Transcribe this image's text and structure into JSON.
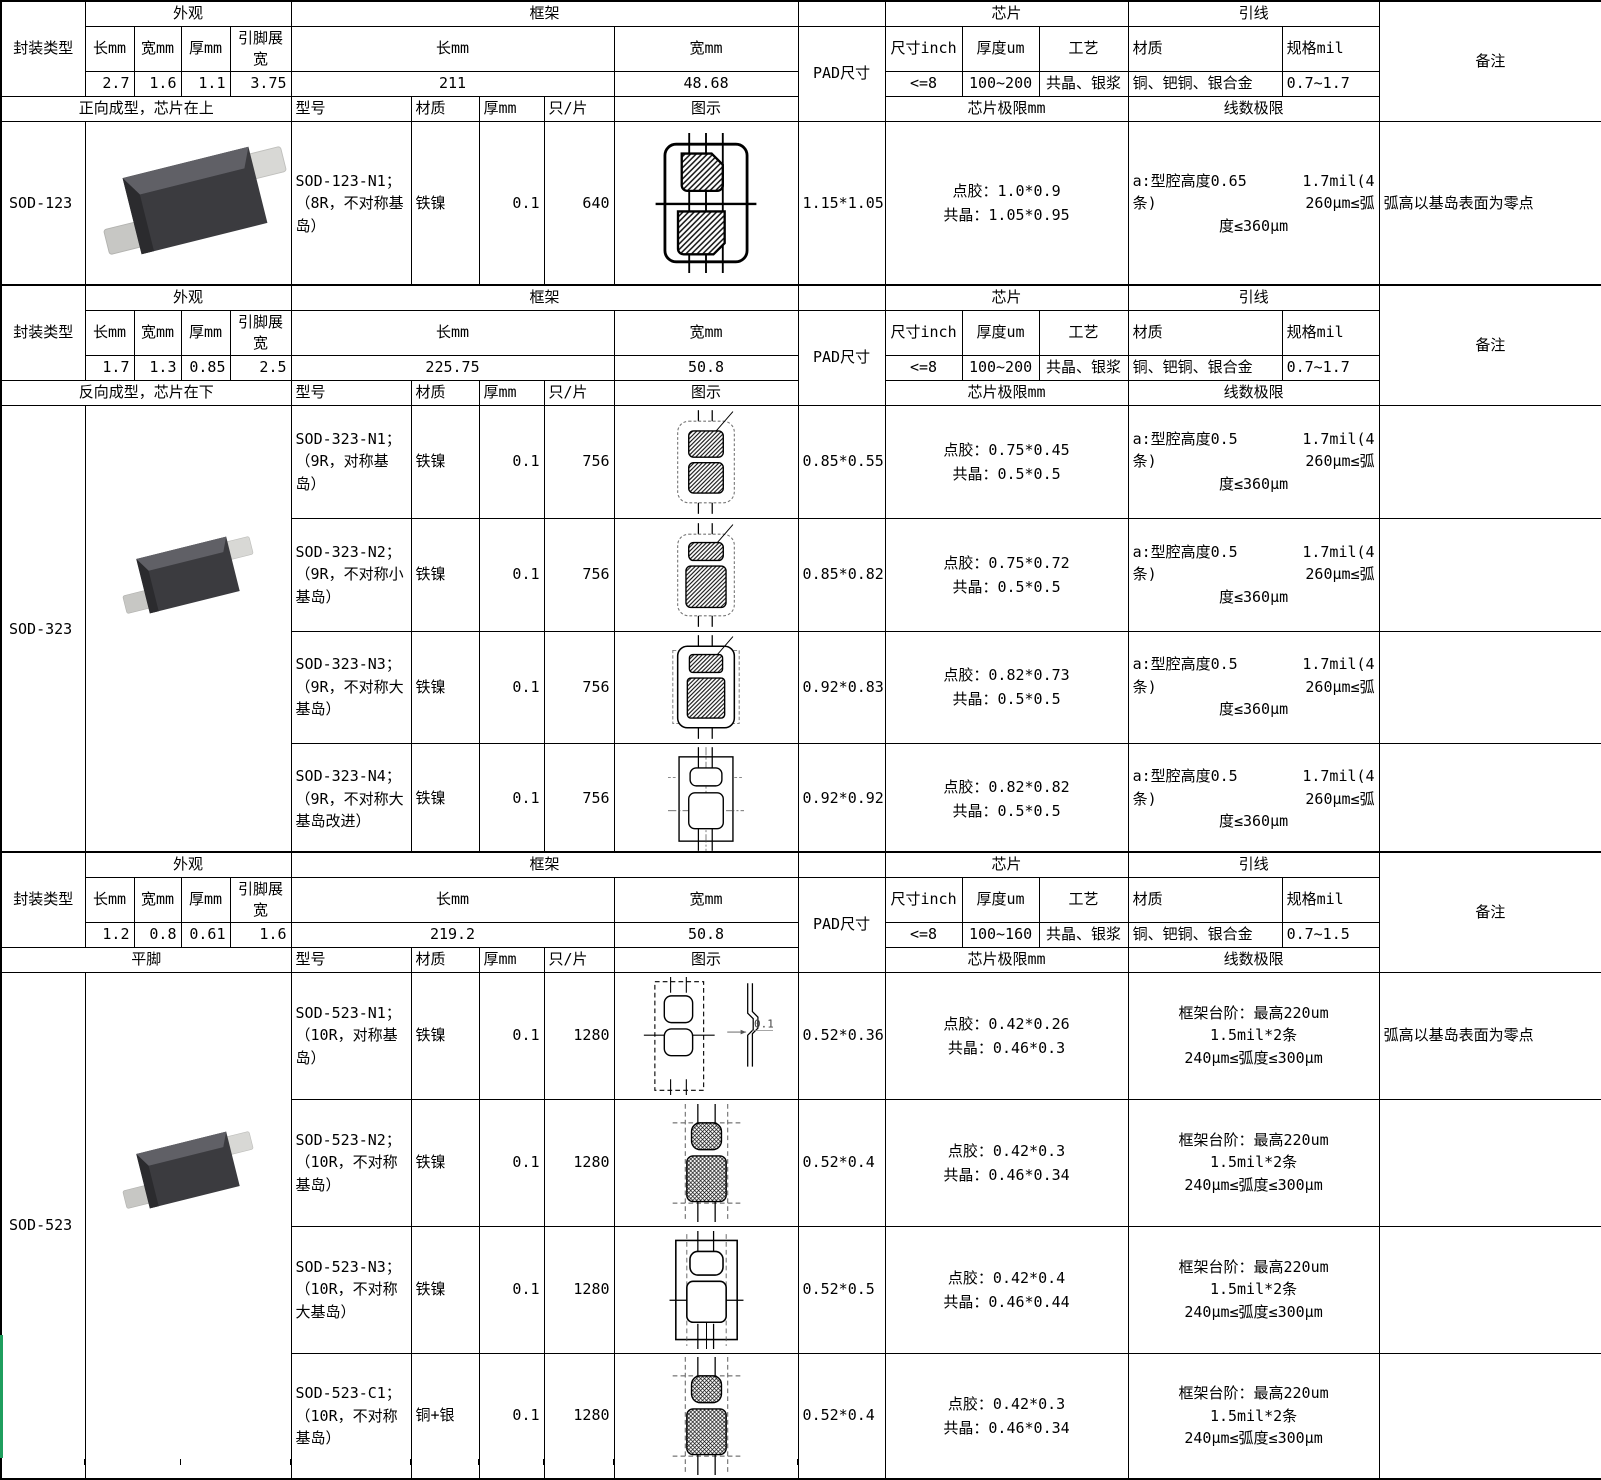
{
  "labels": {
    "package_type": "封装类型",
    "appearance": "外观",
    "frame": "框架",
    "chip": "芯片",
    "wire": "引线",
    "remark": "备注",
    "length_mm": "长mm",
    "width_mm": "宽mm",
    "thickness_mm": "厚mm",
    "lead_span": "引脚展宽",
    "model": "型号",
    "material": "材质",
    "pcs": "只/片",
    "diagram": "图示",
    "pad_size": "PAD尺寸",
    "size_inch": "尺寸inch",
    "thickness_um": "厚度um",
    "process": "工艺",
    "spec_mil": "规格mil",
    "chip_limit": "芯片极限mm",
    "wire_limit": "线数极限"
  },
  "colors": {
    "border": "#000000",
    "selection_green": "#1f9e5e",
    "background": "#ffffff"
  },
  "sections": [
    {
      "package": "SOD-123",
      "appearance": {
        "length": "2.7",
        "width": "1.6",
        "thickness": "1.1",
        "lead_span": "3.75"
      },
      "frame": {
        "length": "211",
        "width": "48.68"
      },
      "molding": "正向成型，芯片在上",
      "chip": {
        "size_inch": "<=8",
        "thickness_um": "100~200",
        "process": "共晶、银浆"
      },
      "wire": {
        "material": "铜、钯铜、银合金",
        "spec_mil": "0.7~1.7"
      },
      "rows": [
        {
          "model": "SOD-123-N1；（8R，不对称基岛）",
          "material": "铁镍",
          "thickness": "0.1",
          "pcs": "640",
          "diagram": "sod123",
          "pad": "1.15*1.05",
          "chip_limit": [
            "点胶：1.0*0.9",
            "共晶：1.05*0.95"
          ],
          "wire_limit_lines": [
            {
              "l": "a:型腔高度0.65",
              "r": "1.7mil(4"
            },
            {
              "l": "条)",
              "r": "260μm≤弧"
            },
            {
              "c": "度≤360μm"
            }
          ],
          "remark": "弧高以基岛表面为零点"
        }
      ]
    },
    {
      "package": "SOD-323",
      "appearance": {
        "length": "1.7",
        "width": "1.3",
        "thickness": "0.85",
        "lead_span": "2.5"
      },
      "frame": {
        "length": "225.75",
        "width": "50.8"
      },
      "molding": "反向成型，芯片在下",
      "chip": {
        "size_inch": "<=8",
        "thickness_um": "100~200",
        "process": "共晶、银浆"
      },
      "wire": {
        "material": "铜、钯铜、银合金",
        "spec_mil": "0.7~1.7"
      },
      "rows": [
        {
          "model": "SOD-323-N1；（9R，对称基岛）",
          "material": "铁镍",
          "thickness": "0.1",
          "pcs": "756",
          "diagram": "s323n1",
          "pad": "0.85*0.55",
          "chip_limit": [
            "点胶：0.75*0.45",
            "共晶：0.5*0.5"
          ],
          "wire_limit_lines": [
            {
              "l": "a:型腔高度0.5",
              "r": "1.7mil(4"
            },
            {
              "l": "条)",
              "r": "260μm≤弧"
            },
            {
              "c": "度≤360μm"
            }
          ],
          "remark": ""
        },
        {
          "model": "SOD-323-N2；（9R，不对称小基岛）",
          "material": "铁镍",
          "thickness": "0.1",
          "pcs": "756",
          "diagram": "s323n2",
          "pad": "0.85*0.82",
          "chip_limit": [
            "点胶：0.75*0.72",
            "共晶：0.5*0.5"
          ],
          "wire_limit_lines": [
            {
              "l": "a:型腔高度0.5",
              "r": "1.7mil(4"
            },
            {
              "l": "条)",
              "r": "260μm≤弧"
            },
            {
              "c": "度≤360μm"
            }
          ],
          "remark": ""
        },
        {
          "model": "SOD-323-N3；（9R，不对称大基岛）",
          "material": "铁镍",
          "thickness": "0.1",
          "pcs": "756",
          "diagram": "s323n3",
          "pad": "0.92*0.83",
          "chip_limit": [
            "点胶：0.82*0.73",
            "共晶：0.5*0.5"
          ],
          "wire_limit_lines": [
            {
              "l": "a:型腔高度0.5",
              "r": "1.7mil(4"
            },
            {
              "l": "条)",
              "r": "260μm≤弧"
            },
            {
              "c": "度≤360μm"
            }
          ],
          "remark": ""
        },
        {
          "model": "SOD-323-N4；（9R，不对称大基岛改进）",
          "material": "铁镍",
          "thickness": "0.1",
          "pcs": "756",
          "diagram": "s323n4",
          "pad": "0.92*0.92",
          "chip_limit": [
            "点胶：0.82*0.82",
            "共晶：0.5*0.5"
          ],
          "wire_limit_lines": [
            {
              "l": "a:型腔高度0.5",
              "r": "1.7mil(4"
            },
            {
              "l": "条)",
              "r": "260μm≤弧"
            },
            {
              "c": "度≤360μm"
            }
          ],
          "remark": ""
        }
      ]
    },
    {
      "package": "SOD-523",
      "appearance": {
        "length": "1.2",
        "width": "0.8",
        "thickness": "0.61",
        "lead_span": "1.6"
      },
      "frame": {
        "length": "219.2",
        "width": "50.8"
      },
      "molding": "平脚",
      "chip": {
        "size_inch": "<=8",
        "thickness_um": "100~160",
        "process": "共晶、银浆"
      },
      "wire": {
        "material": "铜、钯铜、银合金",
        "spec_mil": "0.7~1.5"
      },
      "rows": [
        {
          "model": "SOD-523-N1；（10R，对称基岛）",
          "material": "铁镍",
          "thickness": "0.1",
          "pcs": "1280",
          "diagram": "s523n1",
          "diagram_note": "0.12",
          "pad": "0.52*0.36",
          "chip_limit": [
            "点胶：0.42*0.26",
            "共晶：0.46*0.3"
          ],
          "wire_limit_lines": [
            {
              "c": "框架台阶：最高220um"
            },
            {
              "c": "1.5mil*2条"
            },
            {
              "c": "240μm≤弧度≤300μm"
            }
          ],
          "remark": "弧高以基岛表面为零点"
        },
        {
          "model": "SOD-523-N2；（10R，不对称基岛）",
          "material": "铁镍",
          "thickness": "0.1",
          "pcs": "1280",
          "diagram": "s523n2",
          "pad": "0.52*0.4",
          "chip_limit": [
            "点胶：0.42*0.3",
            "共晶：0.46*0.34"
          ],
          "wire_limit_lines": [
            {
              "c": "框架台阶：最高220um"
            },
            {
              "c": "1.5mil*2条"
            },
            {
              "c": "240μm≤弧度≤300μm"
            }
          ],
          "remark": ""
        },
        {
          "model": "SOD-523-N3；（10R，不对称大基岛）",
          "material": "铁镍",
          "thickness": "0.1",
          "pcs": "1280",
          "diagram": "s523n3",
          "pad": "0.52*0.5",
          "chip_limit": [
            "点胶：0.42*0.4",
            "共晶：0.46*0.44"
          ],
          "wire_limit_lines": [
            {
              "c": "框架台阶：最高220um"
            },
            {
              "c": "1.5mil*2条"
            },
            {
              "c": "240μm≤弧度≤300μm"
            }
          ],
          "remark": ""
        },
        {
          "model": "SOD-523-C1；（10R，不对称基岛）",
          "material": "铜+银",
          "thickness": "0.1",
          "pcs": "1280",
          "diagram": "s523c1",
          "pad": "0.52*0.4",
          "chip_limit": [
            "点胶：0.42*0.3",
            "共晶：0.46*0.34"
          ],
          "wire_limit_lines": [
            {
              "c": "框架台阶：最高220um"
            },
            {
              "c": "1.5mil*2条"
            },
            {
              "c": "240μm≤弧度≤300μm"
            }
          ],
          "remark": ""
        }
      ]
    }
  ]
}
